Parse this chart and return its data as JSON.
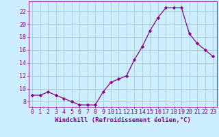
{
  "x": [
    0,
    1,
    2,
    3,
    4,
    5,
    6,
    7,
    8,
    9,
    10,
    11,
    12,
    13,
    14,
    15,
    16,
    17,
    18,
    19,
    20,
    21,
    22,
    23
  ],
  "y": [
    9.0,
    9.0,
    9.5,
    9.0,
    8.5,
    8.0,
    7.5,
    7.5,
    7.5,
    9.5,
    11.0,
    11.5,
    12.0,
    14.5,
    16.5,
    19.0,
    21.0,
    22.5,
    22.5,
    22.5,
    18.5,
    17.0,
    16.0,
    15.0
  ],
  "line_color": "#880088",
  "marker": "D",
  "marker_size": 2.2,
  "bg_color": "#cceeff",
  "grid_color": "#aacccc",
  "xlabel": "Windchill (Refroidissement éolien,°C)",
  "ylabel_ticks": [
    8,
    10,
    12,
    14,
    16,
    18,
    20,
    22
  ],
  "xlim": [
    -0.5,
    23.5
  ],
  "ylim": [
    7.2,
    23.5
  ],
  "axis_color": "#880088",
  "label_fontsize": 6.5,
  "tick_fontsize": 6.0
}
